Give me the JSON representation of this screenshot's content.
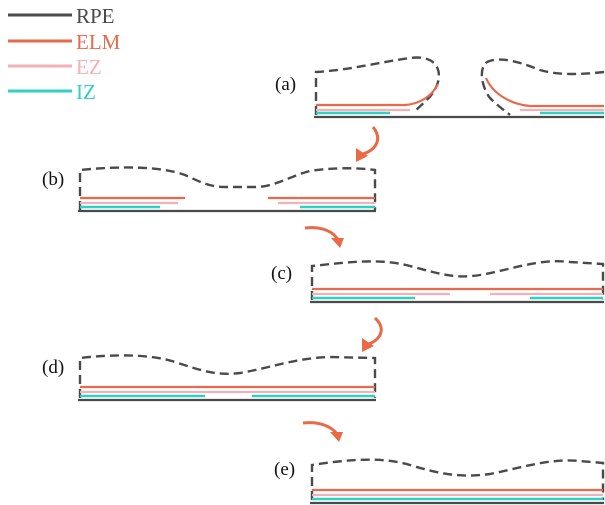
{
  "colors": {
    "rpe": "#4a4a4a",
    "elm": "#e8694b",
    "ez": "#f2b1b5",
    "iz": "#2ed1c3",
    "arrow": "#ea6a45"
  },
  "legend": [
    {
      "key": "rpe",
      "label": "RPE"
    },
    {
      "key": "elm",
      "label": "ELM"
    },
    {
      "key": "ez",
      "label": "EZ"
    },
    {
      "key": "iz",
      "label": "IZ"
    }
  ],
  "panels": {
    "a": {
      "label": "(a)"
    },
    "b": {
      "label": "(b)"
    },
    "c": {
      "label": "(c)"
    },
    "d": {
      "label": "(d)"
    },
    "e": {
      "label": "(e)"
    }
  }
}
